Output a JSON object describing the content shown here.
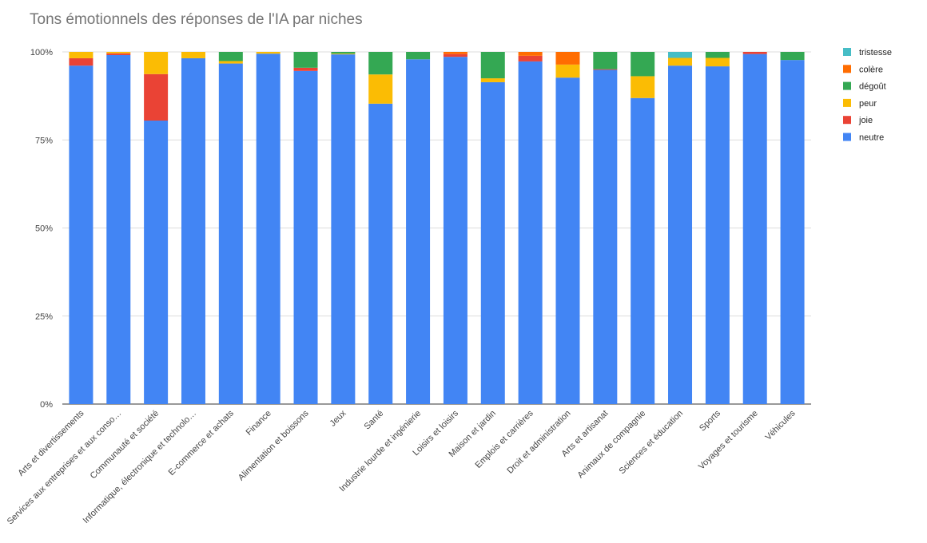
{
  "chart_data": {
    "type": "bar",
    "stacked": "percent",
    "title": "Tons émotionnels des réponses de l'IA par niches",
    "xlabel": "",
    "ylabel": "",
    "ylim": [
      0,
      100
    ],
    "yticks": [
      "0%",
      "25%",
      "50%",
      "75%",
      "100%"
    ],
    "grid": true,
    "legend_position": "right",
    "categories": [
      "Arts et divertissements",
      "Services aux entreprises et aux conso…",
      "Communauté et société",
      "Informatique, électronique et technolo…",
      "E-commerce et achats",
      "Finance",
      "Alimentation et boissons",
      "Jeux",
      "Santé",
      "Industrie lourde et ingénierie",
      "Loisirs et loisirs",
      "Maison et jardin",
      "Emplois et carrières",
      "Droit et administration",
      "Arts et artisanat",
      "Animaux de compagnie",
      "Sciences et éducation",
      "Sports",
      "Voyages et tourisme",
      "Véhicules"
    ],
    "series": [
      {
        "name": "neutre",
        "color": "#4285f4",
        "values": [
          96.1,
          99.1,
          80.5,
          98.2,
          96.7,
          99.5,
          94.6,
          99.3,
          85.3,
          97.9,
          98.6,
          91.4,
          97.3,
          92.7,
          94.9,
          86.9,
          96.1,
          95.9,
          99.4,
          97.7
        ]
      },
      {
        "name": "joie",
        "color": "#ea4335",
        "values": [
          2.1,
          0.5,
          13.2,
          0,
          0,
          0,
          0.9,
          0,
          0,
          0,
          0.8,
          0,
          1.6,
          0,
          0.2,
          0,
          0,
          0,
          0.6,
          0
        ]
      },
      {
        "name": "peur",
        "color": "#fbbc04",
        "values": [
          1.8,
          0.4,
          6.3,
          1.8,
          0.7,
          0.5,
          0,
          0.2,
          8.3,
          0,
          0,
          1.1,
          0,
          3.7,
          0,
          6.2,
          2.2,
          2.4,
          0,
          0
        ]
      },
      {
        "name": "dégoût",
        "color": "#34a853",
        "values": [
          0,
          0,
          0,
          0,
          2.6,
          0,
          4.5,
          0.5,
          6.4,
          2.1,
          0,
          7.5,
          0,
          0,
          4.9,
          6.9,
          0,
          1.7,
          0,
          2.3
        ]
      },
      {
        "name": "colère",
        "color": "#ff6d01",
        "values": [
          0,
          0,
          0,
          0,
          0,
          0,
          0,
          0,
          0,
          0,
          0.6,
          0,
          1.1,
          3.6,
          0,
          0,
          0,
          0,
          0,
          0
        ]
      },
      {
        "name": "tristesse",
        "color": "#46bdc6",
        "values": [
          0,
          0,
          0,
          0,
          0,
          0,
          0,
          0,
          0,
          0,
          0,
          0,
          0,
          0,
          0,
          0,
          1.7,
          0,
          0,
          0
        ]
      }
    ],
    "legend_order": [
      "tristesse",
      "colère",
      "dégoût",
      "peur",
      "joie",
      "neutre"
    ]
  }
}
